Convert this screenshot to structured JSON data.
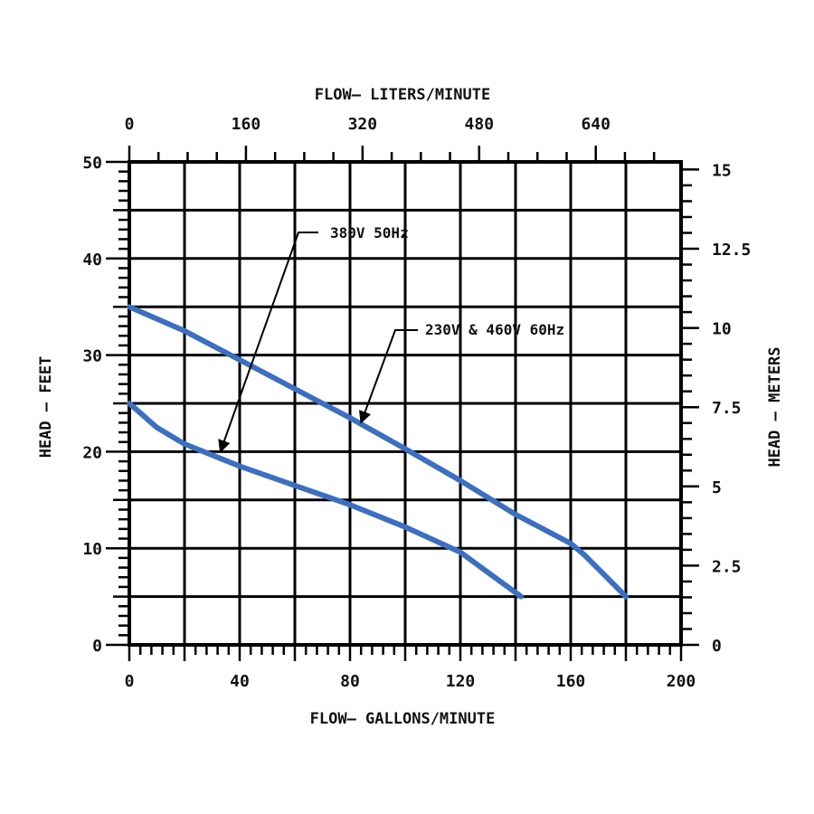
{
  "chart_data": {
    "type": "line",
    "x": {
      "label": "FLOW— GALLONS/MINUTE",
      "range": [
        0,
        200
      ],
      "major_ticks": [
        0,
        40,
        80,
        120,
        160,
        200
      ],
      "tick_labels": [
        "0",
        "40",
        "80",
        "120",
        "160",
        "200"
      ]
    },
    "x2": {
      "label": "FLOW— LITERS/MINUTE",
      "range": [
        0,
        757
      ],
      "major_ticks": [
        0,
        160,
        320,
        480,
        640
      ],
      "tick_labels": [
        "0",
        "160",
        "320",
        "480",
        "640"
      ]
    },
    "y": {
      "label": "HEAD — FEET",
      "range": [
        0,
        50
      ],
      "major_ticks": [
        0,
        10,
        20,
        30,
        40,
        50
      ],
      "tick_labels": [
        "0",
        "10",
        "20",
        "30",
        "40",
        "50"
      ]
    },
    "y2": {
      "label": "HEAD — METERS",
      "range": [
        0,
        15.24
      ],
      "major_ticks": [
        0,
        2.5,
        5,
        7.5,
        10,
        12.5,
        15
      ],
      "tick_labels": [
        "0",
        "2.5",
        "5",
        "7.5",
        "10",
        "12.5",
        "15"
      ]
    },
    "grid": true,
    "series": [
      {
        "name": "230V & 460V  60Hz",
        "color": "#3d6fc0",
        "points": [
          [
            0,
            35
          ],
          [
            20,
            32.5
          ],
          [
            40,
            29.5
          ],
          [
            60,
            26.5
          ],
          [
            80,
            23.5
          ],
          [
            100,
            20.3
          ],
          [
            120,
            17
          ],
          [
            140,
            13.5
          ],
          [
            160,
            10.5
          ],
          [
            165,
            9.3
          ],
          [
            172,
            7.3
          ],
          [
            180,
            5
          ]
        ]
      },
      {
        "name": "380V  50Hz",
        "color": "#3d6fc0",
        "points": [
          [
            0,
            25
          ],
          [
            10,
            22.5
          ],
          [
            20,
            20.8
          ],
          [
            40,
            18.5
          ],
          [
            60,
            16.5
          ],
          [
            80,
            14.5
          ],
          [
            100,
            12.2
          ],
          [
            120,
            9.6
          ],
          [
            130,
            7.5
          ],
          [
            142,
            5
          ]
        ]
      }
    ],
    "annotations": [
      {
        "text": "380V  50Hz",
        "points_to": [
          33,
          20
        ]
      },
      {
        "text": "230V & 460V  60Hz",
        "points_to": [
          84,
          23
        ]
      }
    ]
  }
}
